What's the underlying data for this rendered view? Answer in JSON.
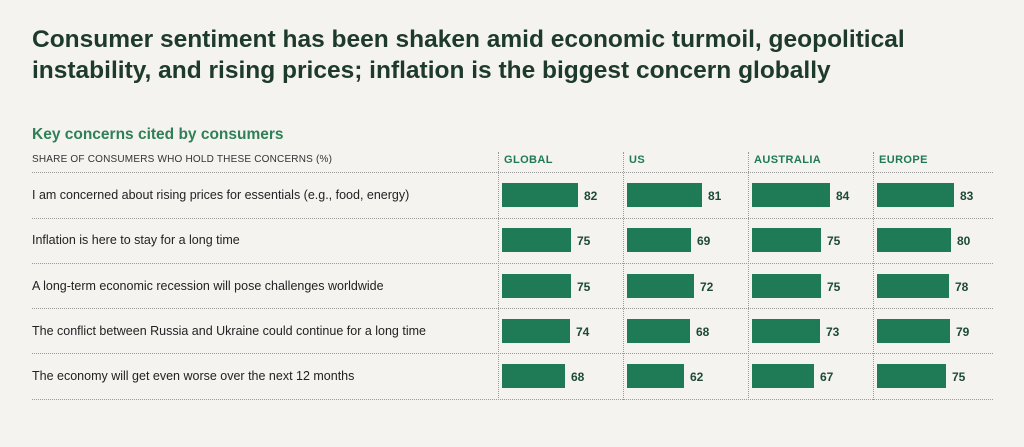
{
  "headline": "Consumer sentiment has been shaken amid economic turmoil, geopolitical instability, and rising prices; inflation is the biggest concern globally",
  "colors": {
    "bar": "#1e7b55",
    "title": "#1d3a2a",
    "subtitle": "#2f8056"
  },
  "chart_data": {
    "type": "bar",
    "orientation": "horizontal",
    "title": "Key concerns cited by consumers",
    "measure_label": "SHARE OF CONSUMERS WHO HOLD THESE CONCERNS (%)",
    "categories": [
      "I am concerned about rising prices for essentials (e.g., food, energy)",
      "Inflation is here to stay for a long time",
      "A long-term economic recession will pose challenges worldwide",
      "The conflict between Russia and Ukraine could continue for a long time",
      "The economy will get even worse over the next 12 months"
    ],
    "series": [
      {
        "name": "GLOBAL",
        "values": [
          82,
          75,
          75,
          74,
          68
        ]
      },
      {
        "name": "US",
        "values": [
          81,
          69,
          72,
          68,
          62
        ]
      },
      {
        "name": "AUSTRALIA",
        "values": [
          84,
          75,
          75,
          73,
          67
        ]
      },
      {
        "name": "EUROPE",
        "values": [
          83,
          80,
          78,
          79,
          75
        ]
      }
    ],
    "xlim": [
      0,
      100
    ],
    "grid": false,
    "legend": "none"
  }
}
